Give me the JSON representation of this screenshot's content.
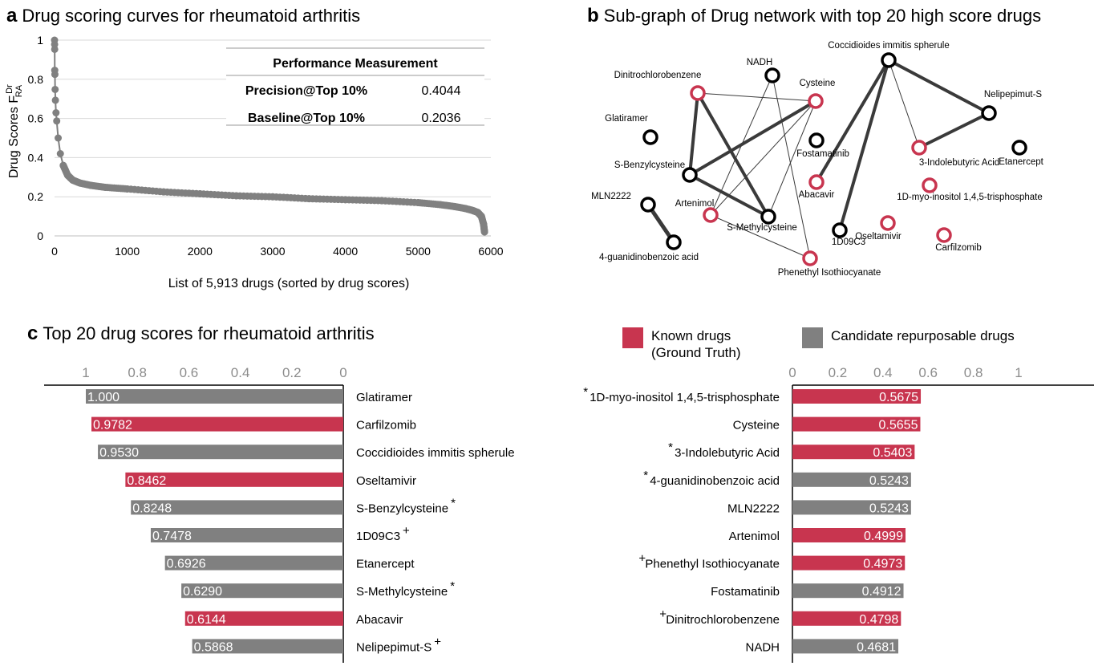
{
  "panel_a": {
    "letter": "a",
    "title": "Drug scoring curves for rheumatoid arthritis",
    "perf_table": {
      "header": "Performance Measurement",
      "rows": [
        {
          "label": "Precision@Top 10%",
          "value": "0.4044"
        },
        {
          "label": "Baseline@Top 10%",
          "value": "0.2036"
        }
      ]
    }
  },
  "panel_b": {
    "letter": "b",
    "title": "Sub-graph of Drug network with top 20 high score drugs"
  },
  "panel_c": {
    "letter": "c",
    "title": "Top 20 drug scores for rheumatoid arthritis"
  },
  "legend": {
    "known": "Known drugs",
    "known_sub": "(Ground Truth)",
    "candidate": "Candidate repurposable drugs"
  },
  "colors": {
    "known": "#c8354f",
    "candidate": "#808080",
    "curve": "#808080",
    "edge": "#3a3a3a"
  },
  "chart_data": [
    {
      "type": "scatter",
      "title": "Drug scoring curves for rheumatoid arthritis",
      "xlabel": "List of 5,913 drugs (sorted by drug scores)",
      "ylabel": "Drug Scores F",
      "ylabel_sup": "Dr",
      "ylabel_sub": "RA",
      "xlim": [
        0,
        6000
      ],
      "ylim": [
        0,
        1
      ],
      "xticks": [
        0,
        1000,
        2000,
        3000,
        4000,
        5000,
        6000
      ],
      "yticks": [
        0,
        0.2,
        0.4,
        0.6,
        0.8,
        1
      ],
      "ytick_labels": [
        "0",
        "0.2",
        "0.4",
        "0.6",
        "0.8",
        "1"
      ],
      "grid": "horizontal",
      "series": [
        {
          "x": [
            0,
            1,
            2,
            3,
            5,
            8,
            12,
            20,
            30,
            50,
            80,
            120,
            180,
            250,
            350,
            500,
            700,
            1000,
            1500,
            2000,
            2500,
            3000,
            3500,
            4000,
            4500,
            5000,
            5300,
            5500,
            5650,
            5750,
            5820,
            5870,
            5900,
            5913
          ],
          "y": [
            1.0,
            0.978,
            0.953,
            0.846,
            0.825,
            0.748,
            0.693,
            0.629,
            0.587,
            0.5,
            0.42,
            0.36,
            0.31,
            0.285,
            0.27,
            0.258,
            0.248,
            0.24,
            0.225,
            0.215,
            0.205,
            0.2,
            0.19,
            0.185,
            0.18,
            0.17,
            0.16,
            0.15,
            0.14,
            0.13,
            0.12,
            0.1,
            0.06,
            0.02
          ]
        }
      ]
    },
    {
      "type": "network",
      "title": "Sub-graph of Drug network with top 20 high score drugs",
      "nodes": [
        {
          "id": "Coccidioides immitis spherule",
          "known": false
        },
        {
          "id": "NADH",
          "known": false
        },
        {
          "id": "Dinitrochlorobenzene",
          "known": true
        },
        {
          "id": "Cysteine",
          "known": true
        },
        {
          "id": "Nelipepimut-S",
          "known": false
        },
        {
          "id": "Glatiramer",
          "known": false
        },
        {
          "id": "Fostamatinib",
          "known": false
        },
        {
          "id": "3-Indolebutyric Acid",
          "known": true
        },
        {
          "id": "Etanercept",
          "known": false
        },
        {
          "id": "S-Benzylcysteine",
          "known": false
        },
        {
          "id": "Abacavir",
          "known": true
        },
        {
          "id": "1D-myo-inositol 1,4,5-trisphosphate",
          "known": true
        },
        {
          "id": "MLN2222",
          "known": false
        },
        {
          "id": "Artenimol",
          "known": true
        },
        {
          "id": "S-Methylcysteine",
          "known": false
        },
        {
          "id": "1D09C3",
          "known": false
        },
        {
          "id": "Oseltamivir",
          "known": true
        },
        {
          "id": "Carfilzomib",
          "known": true
        },
        {
          "id": "4-guanidinobenzoic acid",
          "known": false
        },
        {
          "id": "Phenethyl Isothiocyanate",
          "known": true
        }
      ],
      "edges": [
        {
          "source": "Dinitrochlorobenzene",
          "target": "S-Benzylcysteine",
          "weight": 3
        },
        {
          "source": "Dinitrochlorobenzene",
          "target": "S-Methylcysteine",
          "weight": 3
        },
        {
          "source": "Dinitrochlorobenzene",
          "target": "Cysteine",
          "weight": 1
        },
        {
          "source": "S-Benzylcysteine",
          "target": "Cysteine",
          "weight": 3
        },
        {
          "source": "S-Benzylcysteine",
          "target": "S-Methylcysteine",
          "weight": 3
        },
        {
          "source": "NADH",
          "target": "Artenimol",
          "weight": 1
        },
        {
          "source": "NADH",
          "target": "Phenethyl Isothiocyanate",
          "weight": 1
        },
        {
          "source": "Cysteine",
          "target": "S-Methylcysteine",
          "weight": 1
        },
        {
          "source": "Cysteine",
          "target": "Artenimol",
          "weight": 1
        },
        {
          "source": "Artenimol",
          "target": "Phenethyl Isothiocyanate",
          "weight": 1
        },
        {
          "source": "Coccidioides immitis spherule",
          "target": "Nelipepimut-S",
          "weight": 3
        },
        {
          "source": "Coccidioides immitis spherule",
          "target": "Abacavir",
          "weight": 3
        },
        {
          "source": "Coccidioides immitis spherule",
          "target": "3-Indolebutyric Acid",
          "weight": 1
        },
        {
          "source": "Coccidioides immitis spherule",
          "target": "1D09C3",
          "weight": 3
        },
        {
          "source": "Nelipepimut-S",
          "target": "3-Indolebutyric Acid",
          "weight": 3
        },
        {
          "source": "MLN2222",
          "target": "4-guanidinobenzoic acid",
          "weight": 4
        }
      ]
    },
    {
      "type": "bar",
      "orientation": "horizontal-reversed",
      "xlim": [
        0,
        1
      ],
      "xtick_labels": [
        "1",
        "0.8",
        "0.6",
        "0.4",
        "0.2",
        "0"
      ],
      "categories": [
        "Glatiramer",
        "Carfilzomib",
        "Coccidioides immitis spherule",
        "Oseltamivir",
        "S-Benzylcysteine",
        "1D09C3",
        "Etanercept",
        "S-Methylcysteine",
        "Abacavir",
        "Nelipepimut-S"
      ],
      "marks": [
        "",
        "",
        "",
        "",
        "*",
        "+",
        "",
        "*",
        "",
        "+"
      ],
      "values": [
        1.0,
        0.9782,
        0.953,
        0.8462,
        0.8248,
        0.7478,
        0.6926,
        0.629,
        0.6144,
        0.5868
      ],
      "value_labels": [
        "1.000",
        "0.9782",
        "0.9530",
        "0.8462",
        "0.8248",
        "0.7478",
        "0.6926",
        "0.6290",
        "0.6144",
        "0.5868"
      ],
      "known": [
        false,
        true,
        false,
        true,
        false,
        false,
        false,
        false,
        true,
        false
      ]
    },
    {
      "type": "bar",
      "orientation": "horizontal",
      "xlim": [
        0,
        1
      ],
      "xtick_labels": [
        "0",
        "0.2",
        "0.4",
        "0.6",
        "0.8",
        "1"
      ],
      "categories": [
        "1D-myo-inositol 1,4,5-trisphosphate",
        "Cysteine",
        "3-Indolebutyric Acid",
        "4-guanidinobenzoic acid",
        "MLN2222",
        "Artenimol",
        "Phenethyl Isothiocyanate",
        "Fostamatinib",
        "Dinitrochlorobenzene",
        "NADH"
      ],
      "marks": [
        "*",
        "",
        "*",
        "*",
        "",
        "",
        "+",
        "",
        "+",
        ""
      ],
      "values": [
        0.5675,
        0.5655,
        0.5403,
        0.5243,
        0.5243,
        0.4999,
        0.4973,
        0.4912,
        0.4798,
        0.4681
      ],
      "value_labels": [
        "0.5675",
        "0.5655",
        "0.5403",
        "0.5243",
        "0.5243",
        "0.4999",
        "0.4973",
        "0.4912",
        "0.4798",
        "0.4681"
      ],
      "known": [
        true,
        true,
        true,
        false,
        false,
        true,
        true,
        false,
        true,
        false
      ]
    }
  ]
}
